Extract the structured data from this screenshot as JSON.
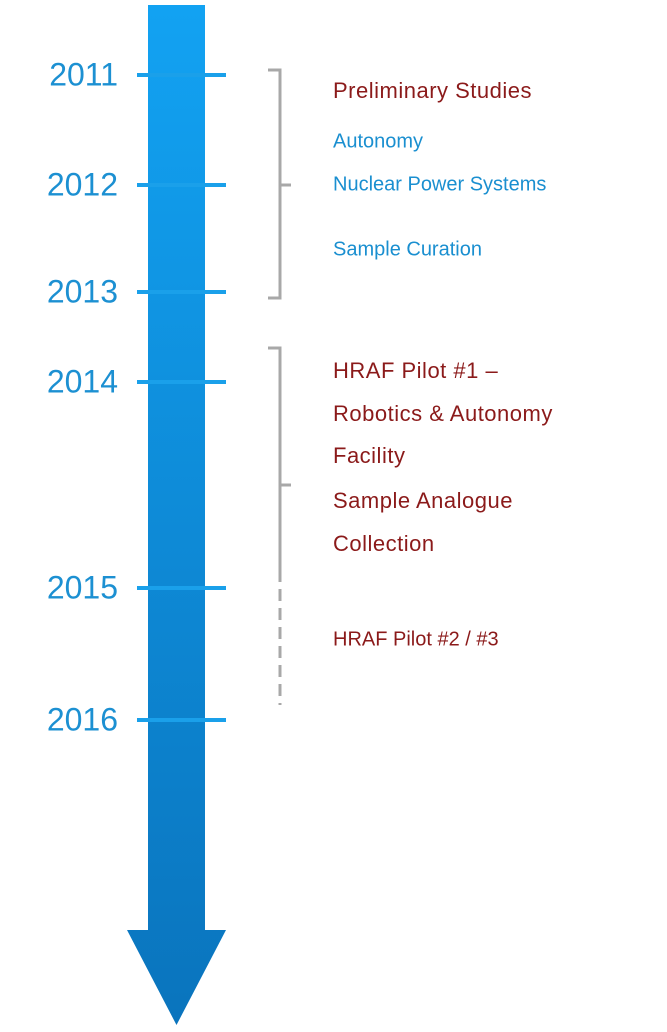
{
  "timeline": {
    "years": [
      "2011",
      "2012",
      "2013",
      "2014",
      "2015",
      "2016"
    ],
    "phases": [
      {
        "title": "Preliminary Studies",
        "items": [
          "Autonomy",
          "Nuclear Power Systems",
          "Sample Curation"
        ]
      },
      {
        "entries": [
          [
            "HRAF Pilot #1 –",
            "Robotics & Autonomy",
            "Facility"
          ],
          [
            "Sample Analogue",
            "Collection"
          ],
          [
            "HRAF Pilot #2 /  #3"
          ]
        ]
      }
    ]
  }
}
